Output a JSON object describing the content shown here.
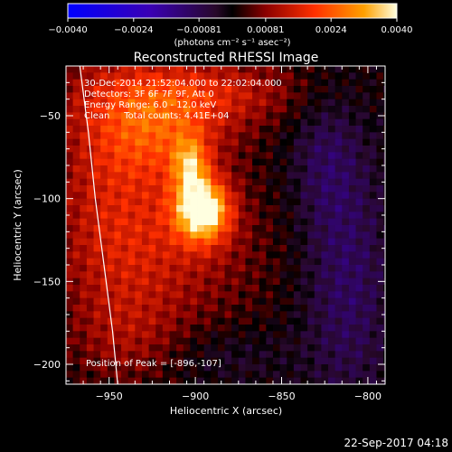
{
  "chart_data": {
    "type": "heatmap",
    "title": "Reconstructed RHESSI Image",
    "xlabel": "Heliocentric X (arcsec)",
    "ylabel": "Heliocentric Y (arcsec)",
    "xlim": [
      -975,
      -790
    ],
    "ylim": [
      -212,
      -20
    ],
    "x_ticks": [
      -950,
      -900,
      -850,
      -800
    ],
    "y_ticks": [
      -50,
      -100,
      -150,
      -200
    ],
    "colorbar": {
      "range": [
        -0.004,
        0.004
      ],
      "tick_values": [
        -0.004,
        -0.0024,
        -0.00081,
        0.00081,
        0.0024,
        0.004
      ],
      "tick_labels": [
        "-0.0040",
        "-0.0024",
        "-0.00081",
        "0.00081",
        "0.0024",
        "0.0040"
      ],
      "units_label": "(photons cm⁻² s⁻¹ asec⁻²)"
    },
    "annotations": [
      "30-Dec-2014 21:52:04.000 to 22:02:04.000",
      "Detectors: 3F 6F 7F 9F, Att 0",
      "Energy Range: 6.0 - 12.0 keV",
      "Clean     Total counts: 4.41E+04"
    ],
    "peak_label": "Position of Peak = [-896,-107]",
    "peak_position": [
      -896,
      -107
    ],
    "sources": [
      {
        "x": -896,
        "y": -107,
        "sx": 11,
        "sy": 13,
        "amp": 0.004
      },
      {
        "x": -903,
        "y": -80,
        "sx": 7,
        "sy": 12,
        "amp": 0.0022
      },
      {
        "x": -920,
        "y": -60,
        "sx": 28,
        "sy": 20,
        "amp": 0.0016
      },
      {
        "x": -900,
        "y": -35,
        "sx": 45,
        "sy": 15,
        "amp": 0.0014
      },
      {
        "x": -915,
        "y": -130,
        "sx": 40,
        "sy": 35,
        "amp": 0.0011
      },
      {
        "x": -950,
        "y": -90,
        "sx": 25,
        "sy": 60,
        "amp": 0.001
      },
      {
        "x": -940,
        "y": -185,
        "sx": 22,
        "sy": 20,
        "amp": 0.0006
      },
      {
        "x": -812,
        "y": -150,
        "sx": 18,
        "sy": 55,
        "amp": -0.001
      },
      {
        "x": -825,
        "y": -75,
        "sx": 14,
        "sy": 30,
        "amp": -0.0007
      },
      {
        "x": -880,
        "y": -195,
        "sx": 25,
        "sy": 12,
        "amp": -0.0004
      }
    ],
    "limb_curve": [
      [
        -967,
        -20
      ],
      [
        -962,
        -60
      ],
      [
        -958,
        -100
      ],
      [
        -953,
        -140
      ],
      [
        -948,
        -180
      ],
      [
        -945,
        -212
      ]
    ],
    "timestamp": "22-Sep-2017 04:18"
  }
}
